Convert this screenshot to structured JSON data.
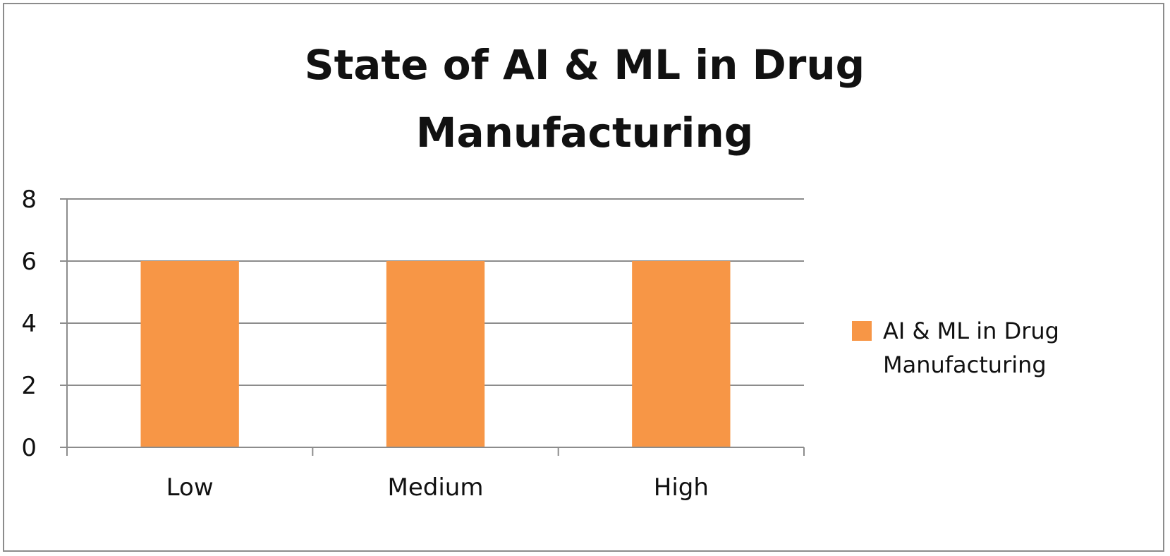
{
  "chart_data": {
    "type": "bar",
    "title_lines": [
      "State of AI & ML in Drug",
      "Manufacturing"
    ],
    "categories": [
      "Low",
      "Medium",
      "High"
    ],
    "series": [
      {
        "name": "AI & ML in Drug Manufacturing",
        "legend_lines": [
          "AI & ML in Drug",
          "Manufacturing"
        ],
        "values": [
          6,
          6,
          6
        ],
        "color": "#F79646"
      }
    ],
    "ylim": [
      0,
      8
    ],
    "yticks": [
      0,
      2,
      4,
      6,
      8
    ],
    "grid": true,
    "legend_position": "right",
    "gridline_color": "#8C8C8C"
  }
}
